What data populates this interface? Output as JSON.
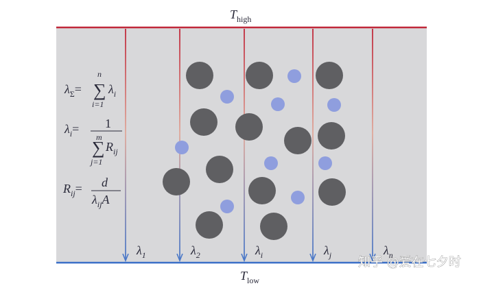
{
  "top_label": {
    "symbol": "T",
    "subscript": "high"
  },
  "bottom_label": {
    "symbol": "T",
    "subscript": "low"
  },
  "formulas": [
    {
      "lhs": "λ",
      "lhs_sub": "Σ",
      "eq": "=",
      "sum": "∑",
      "upper": "n",
      "lower": "i=1",
      "term": "λ",
      "term_sub": "i"
    },
    {
      "lhs": "λ",
      "lhs_sub": "i",
      "eq": "=",
      "numerator": "1",
      "sum": "∑",
      "upper": "m",
      "lower": "j=1",
      "term": "R",
      "term_sub": "ij"
    },
    {
      "lhs": "R",
      "lhs_sub": "ij",
      "eq": "=",
      "numerator": "d",
      "denominator": "λ",
      "denominator_sub": "ij",
      "denominator_tail": "A"
    }
  ],
  "channels": [
    {
      "symbol": "λ",
      "subscript": "1"
    },
    {
      "symbol": "λ",
      "subscript": "2"
    },
    {
      "symbol": "λ",
      "subscript": "i"
    },
    {
      "symbol": "λ",
      "subscript": "j"
    },
    {
      "symbol": "λ",
      "subscript": "n"
    }
  ],
  "watermark": "知乎 @爱在七夕时"
}
